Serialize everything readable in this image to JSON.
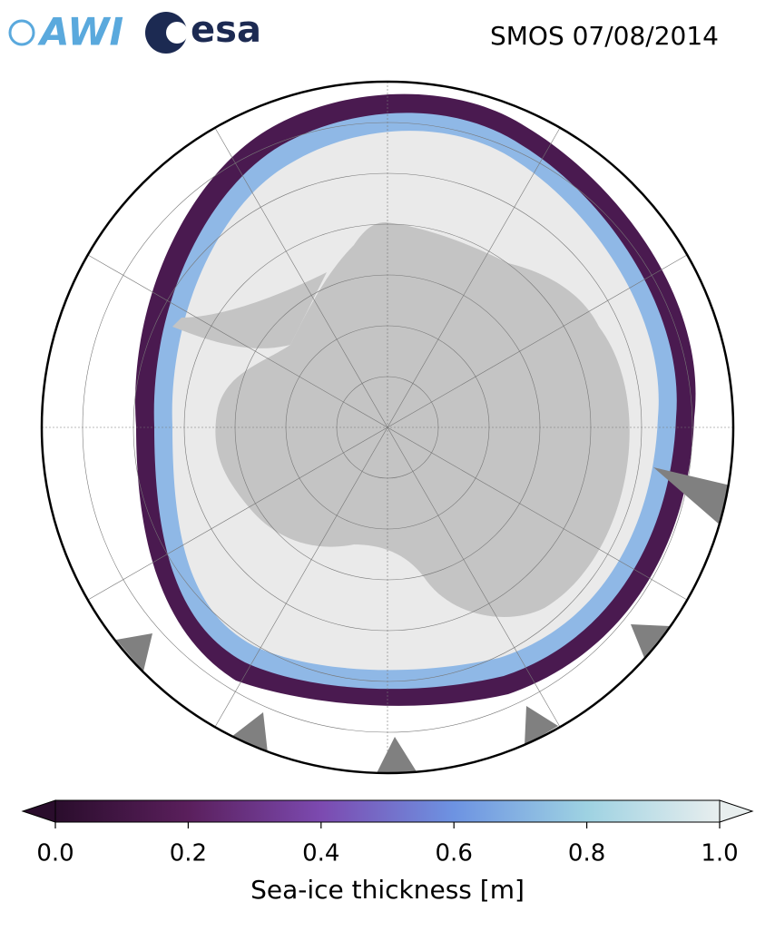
{
  "header": {
    "logos": [
      "AWI",
      "esa"
    ],
    "title": "SMOS 07/08/2014"
  },
  "colorbar": {
    "label": "Sea-ice thickness [m]",
    "range": [
      0,
      1
    ],
    "colors": [
      "#2a0d2c",
      "#5a1f5c",
      "#7c4ab0",
      "#6d93e2",
      "#9ed2e2",
      "#e8eeee"
    ],
    "ticks": [
      {
        "value": 0,
        "label": "0.0"
      },
      {
        "value": 0.2,
        "label": "0.2"
      },
      {
        "value": 0.4,
        "label": "0.4"
      },
      {
        "value": 0.6,
        "label": "0.6"
      },
      {
        "value": 0.8,
        "label": "0.8"
      },
      {
        "value": 1,
        "label": "1.0"
      }
    ]
  }
}
